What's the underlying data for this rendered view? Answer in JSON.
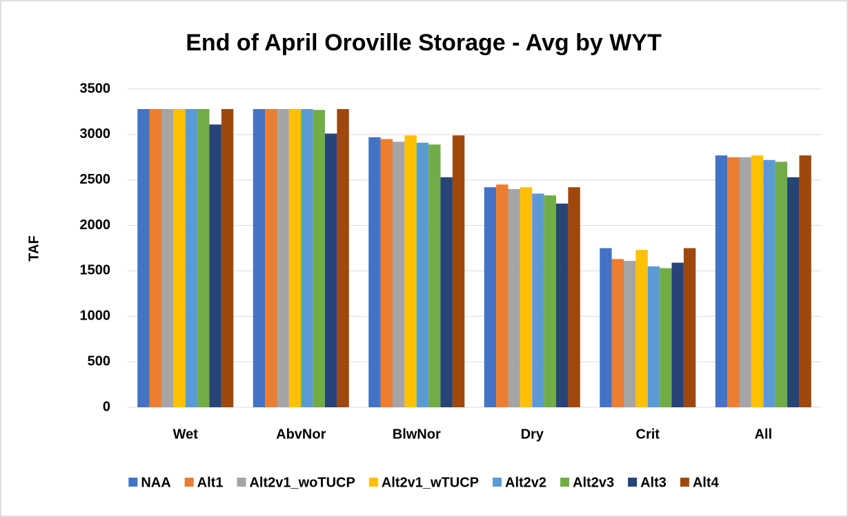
{
  "chart_data": {
    "type": "bar",
    "title": "End of April Oroville Storage - Avg by WYT",
    "y_label": "TAF",
    "categories": [
      "Wet",
      "AbvNor",
      "BlwNor",
      "Dry",
      "Crit",
      "All"
    ],
    "series": [
      {
        "name": "NAA",
        "color": "#4472c4",
        "values": [
          3280,
          3280,
          2970,
          2420,
          1750,
          2770
        ]
      },
      {
        "name": "Alt1",
        "color": "#ed7d31",
        "values": [
          3280,
          3280,
          2950,
          2450,
          1630,
          2750
        ]
      },
      {
        "name": "Alt2v1_woTUCP",
        "color": "#a5a5a5",
        "values": [
          3280,
          3280,
          2920,
          2400,
          1610,
          2750
        ]
      },
      {
        "name": "Alt2v1_wTUCP",
        "color": "#ffc000",
        "values": [
          3280,
          3280,
          2990,
          2420,
          1730,
          2770
        ]
      },
      {
        "name": "Alt2v2",
        "color": "#5b9bd5",
        "values": [
          3280,
          3280,
          2910,
          2350,
          1550,
          2720
        ]
      },
      {
        "name": "Alt2v3",
        "color": "#70ad47",
        "values": [
          3280,
          3270,
          2890,
          2330,
          1530,
          2700
        ]
      },
      {
        "name": "Alt3",
        "color": "#264478",
        "values": [
          3110,
          3010,
          2530,
          2240,
          1590,
          2530
        ]
      },
      {
        "name": "Alt4",
        "color": "#9e480e",
        "values": [
          3280,
          3280,
          2990,
          2420,
          1750,
          2770
        ]
      }
    ],
    "ylim": [
      0,
      3500
    ],
    "yticks": [
      0,
      500,
      1000,
      1500,
      2000,
      2500,
      3000,
      3500
    ],
    "grid": true,
    "legend": "bottom"
  }
}
